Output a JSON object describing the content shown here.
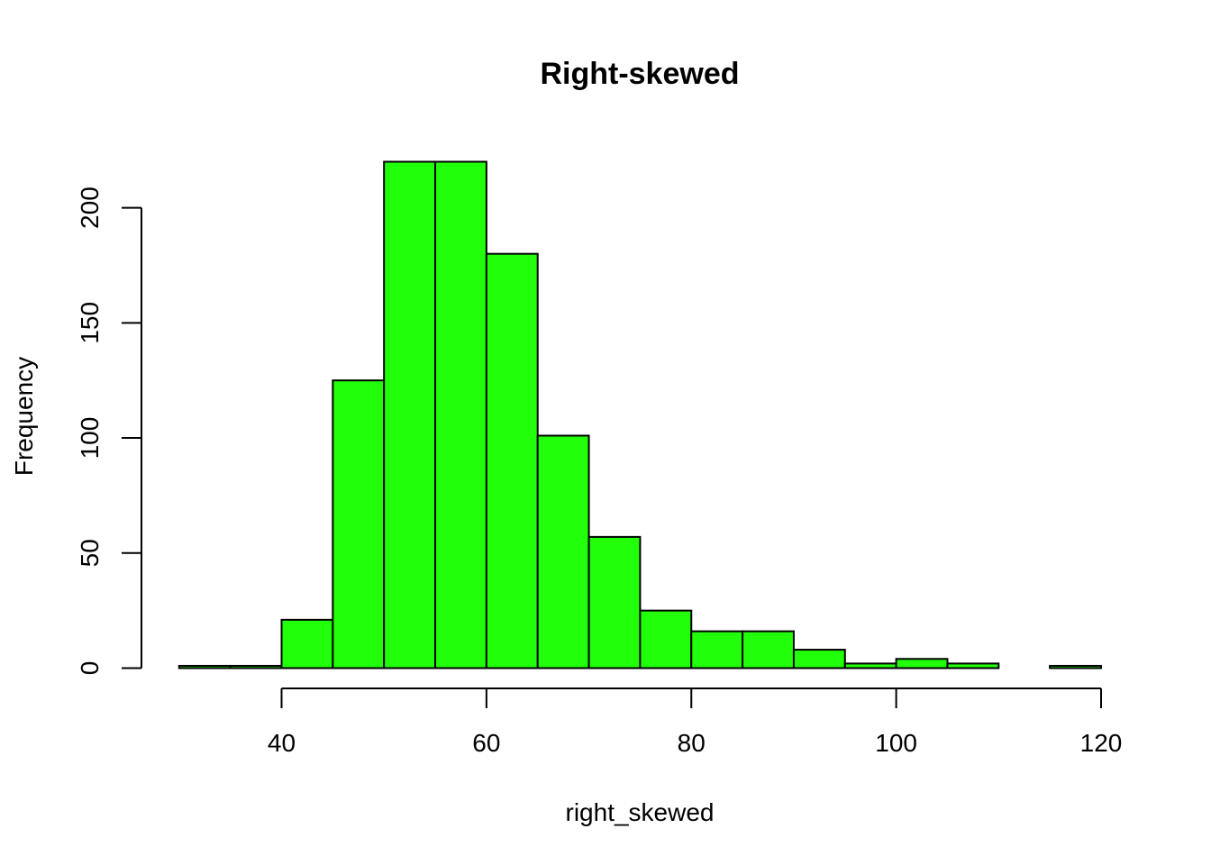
{
  "chart_data": {
    "type": "bar",
    "title": "Right-skewed",
    "xlabel": "right_skewed",
    "ylabel": "Frequency",
    "bin_edges": [
      30,
      35,
      40,
      45,
      50,
      55,
      60,
      65,
      70,
      75,
      80,
      85,
      90,
      95,
      100,
      105,
      110,
      115,
      120
    ],
    "values": [
      1,
      1,
      21,
      125,
      220,
      220,
      180,
      101,
      57,
      25,
      16,
      16,
      8,
      2,
      4,
      2,
      0,
      1
    ],
    "bar_color": "#22ff0a",
    "border_color": "#000000",
    "xlim": [
      30,
      120
    ],
    "ylim": [
      0,
      220
    ],
    "x_ticks": [
      40,
      60,
      80,
      100,
      120
    ],
    "x_tick_labels": [
      "40",
      "60",
      "80",
      "100",
      "120"
    ],
    "y_ticks": [
      0,
      50,
      100,
      150,
      200
    ],
    "y_tick_labels": [
      "0",
      "50",
      "100",
      "150",
      "200"
    ],
    "grid": false
  }
}
